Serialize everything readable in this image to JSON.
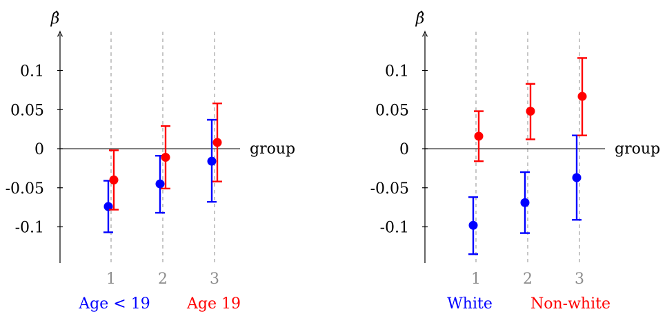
{
  "chart_data": [
    {
      "type": "scatter",
      "ylabel": "β̂",
      "xlabel": "group",
      "ylim": [
        -0.145,
        0.145
      ],
      "x_ticks": [
        "1",
        "2",
        "3"
      ],
      "y_ticks": [
        "0.1",
        "0.05",
        "0",
        "-0.05",
        "-0.1"
      ],
      "y_tick_values": [
        0.1,
        0.05,
        0,
        -0.05,
        -0.1
      ],
      "grid": "dashed vertical at each group",
      "series": [
        {
          "name": "Age < 19",
          "color": "#0000ff",
          "x": [
            1,
            2,
            3
          ],
          "y": [
            -0.074,
            -0.045,
            -0.016
          ],
          "ci_low": [
            -0.107,
            -0.082,
            -0.068
          ],
          "ci_high": [
            -0.041,
            -0.009,
            0.037
          ]
        },
        {
          "name": "Age 19",
          "color": "#ff0000",
          "x": [
            1,
            2,
            3
          ],
          "y": [
            -0.04,
            -0.011,
            0.008
          ],
          "ci_low": [
            -0.078,
            -0.051,
            -0.042
          ],
          "ci_high": [
            -0.002,
            0.029,
            0.058
          ]
        }
      ]
    },
    {
      "type": "scatter",
      "ylabel": "β̂",
      "xlabel": "group",
      "ylim": [
        -0.145,
        0.145
      ],
      "x_ticks": [
        "1",
        "2",
        "3"
      ],
      "y_ticks": [
        "0.1",
        "0.05",
        "0",
        "-0.05",
        "-0.1"
      ],
      "y_tick_values": [
        0.1,
        0.05,
        0,
        -0.05,
        -0.1
      ],
      "grid": "dashed vertical at each group",
      "series": [
        {
          "name": "White",
          "color": "#0000ff",
          "x": [
            1,
            2,
            3
          ],
          "y": [
            -0.098,
            -0.069,
            -0.037
          ],
          "ci_low": [
            -0.135,
            -0.108,
            -0.091
          ],
          "ci_high": [
            -0.062,
            -0.03,
            0.017
          ]
        },
        {
          "name": "Non-white",
          "color": "#ff0000",
          "x": [
            1,
            2,
            3
          ],
          "y": [
            0.016,
            0.048,
            0.067
          ],
          "ci_low": [
            -0.016,
            0.012,
            0.017
          ],
          "ci_high": [
            0.048,
            0.083,
            0.116
          ]
        }
      ]
    }
  ]
}
